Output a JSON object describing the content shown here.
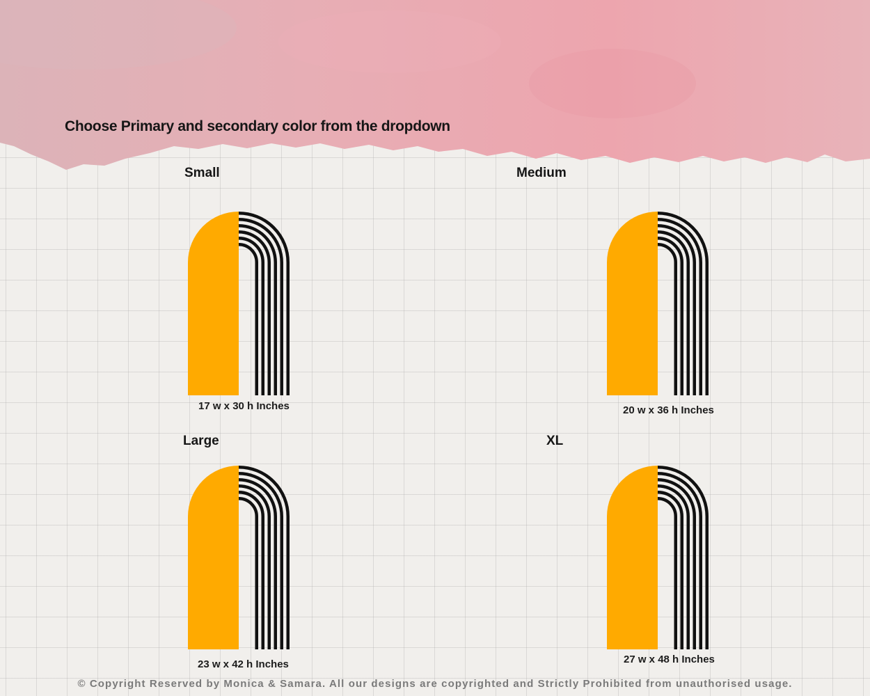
{
  "heading": "Choose Primary and secondary color from the dropdown",
  "colors": {
    "primary": "#FFAA00",
    "secondary": "#111111",
    "wash": "#EBA9B1"
  },
  "sizes": [
    {
      "label": "Small",
      "dimensions": "17 w x 30 h Inches"
    },
    {
      "label": "Medium",
      "dimensions": "20 w x 36 h Inches"
    },
    {
      "label": "Large",
      "dimensions": "23 w x 42 h Inches"
    },
    {
      "label": "XL",
      "dimensions": "27 w x 48 h Inches"
    }
  ],
  "footer": "© Copyright Reserved by Monica & Samara. All our designs are copyrighted and Strictly Prohibited from unauthorised usage."
}
